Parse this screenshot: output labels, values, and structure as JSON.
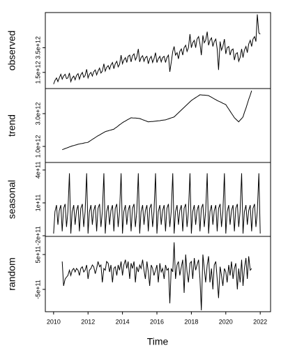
{
  "chart_data": {
    "type": "line",
    "xlabel": "Time",
    "color": "#000000",
    "xlim": [
      2009.52,
      2022.6
    ],
    "xticks": [
      2010,
      2012,
      2014,
      2016,
      2018,
      2020,
      2022
    ],
    "x": [
      2010,
      2010.08,
      2010.17,
      2010.25,
      2010.33,
      2010.42,
      2010.5,
      2010.58,
      2010.67,
      2010.75,
      2010.83,
      2010.92,
      2011,
      2011.08,
      2011.17,
      2011.25,
      2011.33,
      2011.42,
      2011.5,
      2011.58,
      2011.67,
      2011.75,
      2011.83,
      2011.92,
      2012,
      2012.08,
      2012.17,
      2012.25,
      2012.33,
      2012.42,
      2012.5,
      2012.58,
      2012.67,
      2012.75,
      2012.83,
      2012.92,
      2013,
      2013.08,
      2013.17,
      2013.25,
      2013.33,
      2013.42,
      2013.5,
      2013.58,
      2013.67,
      2013.75,
      2013.83,
      2013.92,
      2014,
      2014.08,
      2014.17,
      2014.25,
      2014.33,
      2014.42,
      2014.5,
      2014.58,
      2014.67,
      2014.75,
      2014.83,
      2014.92,
      2015,
      2015.08,
      2015.17,
      2015.25,
      2015.33,
      2015.42,
      2015.5,
      2015.58,
      2015.67,
      2015.75,
      2015.83,
      2015.92,
      2016,
      2016.08,
      2016.17,
      2016.25,
      2016.33,
      2016.42,
      2016.5,
      2016.58,
      2016.67,
      2016.75,
      2016.83,
      2016.92,
      2017,
      2017.08,
      2017.17,
      2017.25,
      2017.33,
      2017.42,
      2017.5,
      2017.58,
      2017.67,
      2017.75,
      2017.83,
      2017.92,
      2018,
      2018.08,
      2018.17,
      2018.25,
      2018.33,
      2018.42,
      2018.5,
      2018.58,
      2018.67,
      2018.75,
      2018.83,
      2018.92,
      2019,
      2019.08,
      2019.17,
      2019.25,
      2019.33,
      2019.42,
      2019.5,
      2019.58,
      2019.67,
      2019.75,
      2019.83,
      2019.92,
      2020,
      2020.08,
      2020.17,
      2020.25,
      2020.33,
      2020.42,
      2020.5,
      2020.58,
      2020.67,
      2020.75,
      2020.83,
      2020.92,
      2021,
      2021.08,
      2021.17,
      2021.25,
      2021.33,
      2021.42,
      2021.5,
      2021.58,
      2021.67,
      2021.75,
      2021.83,
      2021.92,
      2022
    ],
    "panels": [
      {
        "ylabel": "observed",
        "ylim": [
          190000000000.0,
          6350000000000.0
        ],
        "yticks": [
          {
            "value": 1500000000000.0,
            "label": "1.5e+12"
          },
          {
            "value": 3500000000000.0,
            "label": "3.5e+12"
          }
        ],
        "values": [
          550000000000.0,
          850000000000.0,
          1050000000000.0,
          750000000000.0,
          1050000000000.0,
          1350000000000.0,
          950000000000.0,
          1200000000000.0,
          1350000000000.0,
          1000000000000.0,
          1050000000000.0,
          1450000000000.0,
          750000000000.0,
          1050000000000.0,
          1200000000000.0,
          900000000000.0,
          1250000000000.0,
          1400000000000.0,
          950000000000.0,
          1300000000000.0,
          1500000000000.0,
          1100000000000.0,
          1250000000000.0,
          1750000000000.0,
          1050000000000.0,
          1350000000000.0,
          1500000000000.0,
          1200000000000.0,
          1550000000000.0,
          1700000000000.0,
          1300000000000.0,
          1600000000000.0,
          1850000000000.0,
          1450000000000.0,
          1600000000000.0,
          2200000000000.0,
          1600000000000.0,
          1900000000000.0,
          2050000000000.0,
          1750000000000.0,
          2100000000000.0,
          2300000000000.0,
          1800000000000.0,
          2200000000000.0,
          2400000000000.0,
          1950000000000.0,
          2150000000000.0,
          2900000000000.0,
          2200000000000.0,
          2500000000000.0,
          2700000000000.0,
          2300000000000.0,
          2800000000000.0,
          2900000000000.0,
          2350000000000.0,
          2850000000000.0,
          3000000000000.0,
          2500000000000.0,
          2750000000000.0,
          3400000000000.0,
          2350000000000.0,
          2700000000000.0,
          2850000000000.0,
          2400000000000.0,
          2700000000000.0,
          2800000000000.0,
          2200000000000.0,
          2600000000000.0,
          2800000000000.0,
          2300000000000.0,
          2600000000000.0,
          3100000000000.0,
          2300000000000.0,
          2600000000000.0,
          2800000000000.0,
          2350000000000.0,
          2700000000000.0,
          2800000000000.0,
          2300000000000.0,
          2700000000000.0,
          2900000000000.0,
          1550000000000.0,
          2300000000000.0,
          3200000000000.0,
          3600000000000.0,
          2900000000000.0,
          3100000000000.0,
          2600000000000.0,
          3200000000000.0,
          3400000000000.0,
          2900000000000.0,
          3500000000000.0,
          3700000000000.0,
          3200000000000.0,
          3500000000000.0,
          4600000000000.0,
          3500000000000.0,
          3900000000000.0,
          4100000000000.0,
          3500000000000.0,
          4200000000000.0,
          4400000000000.0,
          3800000000000.0,
          2900000000000.0,
          4500000000000.0,
          3900000000000.0,
          4100000000000.0,
          4800000000000.0,
          3700000000000.0,
          4100000000000.0,
          4300000000000.0,
          3600000000000.0,
          4000000000000.0,
          4200000000000.0,
          3400000000000.0,
          1700000000000.0,
          4000000000000.0,
          3300000000000.0,
          3600000000000.0,
          4200000000000.0,
          3000000000000.0,
          3500000000000.0,
          3600000000000.0,
          2900000000000.0,
          3300000000000.0,
          3400000000000.0,
          2500000000000.0,
          3000000000000.0,
          3100000000000.0,
          2400000000000.0,
          2700000000000.0,
          3400000000000.0,
          2700000000000.0,
          3300000000000.0,
          3600000000000.0,
          3100000000000.0,
          3800000000000.0,
          4100000000000.0,
          3600000000000.0,
          4200000000000.0,
          4400000000000.0,
          4000000000000.0,
          6200000000000.0,
          4700000000000.0,
          4600000000000.0
        ]
      },
      {
        "ylabel": "trend",
        "ylim": [
          20000000000.0,
          4530000000000.0
        ],
        "yticks": [
          {
            "value": 1000000000000.0,
            "label": "1.0e+12"
          },
          {
            "value": 3000000000000.0,
            "label": "3.0e+12"
          }
        ],
        "values": [
          null,
          null,
          null,
          null,
          null,
          null,
          800000000000.0,
          830000000000.0,
          870000000000.0,
          900000000000.0,
          930000000000.0,
          970000000000.0,
          1000000000000.0,
          1030000000000.0,
          1050000000000.0,
          1080000000000.0,
          1100000000000.0,
          1130000000000.0,
          1150000000000.0,
          1170000000000.0,
          1180000000000.0,
          1200000000000.0,
          1220000000000.0,
          1230000000000.0,
          1250000000000.0,
          1310000000000.0,
          1370000000000.0,
          1430000000000.0,
          1480000000000.0,
          1540000000000.0,
          1600000000000.0,
          1650000000000.0,
          1700000000000.0,
          1750000000000.0,
          1800000000000.0,
          1850000000000.0,
          1900000000000.0,
          1930000000000.0,
          1950000000000.0,
          1980000000000.0,
          2000000000000.0,
          2030000000000.0,
          2050000000000.0,
          2120000000000.0,
          2180000000000.0,
          2250000000000.0,
          2320000000000.0,
          2380000000000.0,
          2450000000000.0,
          2500000000000.0,
          2550000000000.0,
          2600000000000.0,
          2650000000000.0,
          2700000000000.0,
          2750000000000.0,
          2740000000000.0,
          2730000000000.0,
          2730000000000.0,
          2720000000000.0,
          2710000000000.0,
          2700000000000.0,
          2670000000000.0,
          2630000000000.0,
          2600000000000.0,
          2570000000000.0,
          2530000000000.0,
          2500000000000.0,
          2510000000000.0,
          2520000000000.0,
          2520000000000.0,
          2530000000000.0,
          2540000000000.0,
          2550000000000.0,
          2560000000000.0,
          2570000000000.0,
          2590000000000.0,
          2600000000000.0,
          2610000000000.0,
          2620000000000.0,
          2650000000000.0,
          2680000000000.0,
          2710000000000.0,
          2740000000000.0,
          2770000000000.0,
          2800000000000.0,
          2880000000000.0,
          2970000000000.0,
          3050000000000.0,
          3130000000000.0,
          3220000000000.0,
          3300000000000.0,
          3380000000000.0,
          3470000000000.0,
          3550000000000.0,
          3630000000000.0,
          3720000000000.0,
          3800000000000.0,
          3860000000000.0,
          3920000000000.0,
          3980000000000.0,
          4030000000000.0,
          4090000000000.0,
          4150000000000.0,
          4140000000000.0,
          4130000000000.0,
          4130000000000.0,
          4120000000000.0,
          4110000000000.0,
          4100000000000.0,
          4050000000000.0,
          4000000000000.0,
          3950000000000.0,
          3900000000000.0,
          3850000000000.0,
          3800000000000.0,
          3760000000000.0,
          3720000000000.0,
          3680000000000.0,
          3630000000000.0,
          3590000000000.0,
          3550000000000.0,
          3420000000000.0,
          3280000000000.0,
          3150000000000.0,
          3020000000000.0,
          2880000000000.0,
          2750000000000.0,
          2670000000000.0,
          2580000000000.0,
          2500000000000.0,
          2600000000000.0,
          2700000000000.0,
          2800000000000.0,
          3070000000000.0,
          3330000000000.0,
          3600000000000.0,
          3870000000000.0,
          4130000000000.0,
          4400000000000.0,
          null,
          null,
          null,
          null,
          null,
          null
        ]
      },
      {
        "ylabel": "seasonal",
        "ylim": [
          -206000000000.0,
          469000000000.0
        ],
        "yticks": [
          {
            "value": -200000000000.0,
            "label": "-2e+11"
          },
          {
            "value": 100000000000.0,
            "label": "1e+11"
          },
          {
            "value": 400000000000.0,
            "label": "4e+11"
          }
        ],
        "values": [
          -180000000000.0,
          20000000000.0,
          80000000000.0,
          -100000000000.0,
          30000000000.0,
          80000000000.0,
          -160000000000.0,
          50000000000.0,
          90000000000.0,
          -120000000000.0,
          20000000000.0,
          370000000000.0,
          -180000000000.0,
          20000000000.0,
          80000000000.0,
          -100000000000.0,
          30000000000.0,
          80000000000.0,
          -160000000000.0,
          50000000000.0,
          90000000000.0,
          -120000000000.0,
          20000000000.0,
          370000000000.0,
          -180000000000.0,
          20000000000.0,
          80000000000.0,
          -100000000000.0,
          30000000000.0,
          80000000000.0,
          -160000000000.0,
          50000000000.0,
          90000000000.0,
          -120000000000.0,
          20000000000.0,
          370000000000.0,
          -180000000000.0,
          20000000000.0,
          80000000000.0,
          -100000000000.0,
          30000000000.0,
          80000000000.0,
          -160000000000.0,
          50000000000.0,
          90000000000.0,
          -120000000000.0,
          20000000000.0,
          370000000000.0,
          -180000000000.0,
          20000000000.0,
          80000000000.0,
          -100000000000.0,
          30000000000.0,
          80000000000.0,
          -160000000000.0,
          50000000000.0,
          90000000000.0,
          -120000000000.0,
          20000000000.0,
          370000000000.0,
          -180000000000.0,
          20000000000.0,
          80000000000.0,
          -100000000000.0,
          30000000000.0,
          80000000000.0,
          -160000000000.0,
          50000000000.0,
          90000000000.0,
          -120000000000.0,
          20000000000.0,
          370000000000.0,
          -180000000000.0,
          20000000000.0,
          80000000000.0,
          -100000000000.0,
          30000000000.0,
          80000000000.0,
          -160000000000.0,
          50000000000.0,
          90000000000.0,
          -120000000000.0,
          20000000000.0,
          370000000000.0,
          -180000000000.0,
          20000000000.0,
          80000000000.0,
          -100000000000.0,
          30000000000.0,
          80000000000.0,
          -160000000000.0,
          50000000000.0,
          90000000000.0,
          -120000000000.0,
          20000000000.0,
          370000000000.0,
          -180000000000.0,
          20000000000.0,
          80000000000.0,
          -100000000000.0,
          30000000000.0,
          80000000000.0,
          -160000000000.0,
          50000000000.0,
          90000000000.0,
          -120000000000.0,
          20000000000.0,
          370000000000.0,
          -180000000000.0,
          20000000000.0,
          80000000000.0,
          -100000000000.0,
          30000000000.0,
          80000000000.0,
          -160000000000.0,
          50000000000.0,
          90000000000.0,
          -120000000000.0,
          20000000000.0,
          370000000000.0,
          -180000000000.0,
          20000000000.0,
          80000000000.0,
          -100000000000.0,
          30000000000.0,
          80000000000.0,
          -160000000000.0,
          50000000000.0,
          90000000000.0,
          -120000000000.0,
          20000000000.0,
          370000000000.0,
          -180000000000.0,
          20000000000.0,
          80000000000.0,
          -100000000000.0,
          30000000000.0,
          80000000000.0,
          -160000000000.0,
          50000000000.0,
          90000000000.0,
          -120000000000.0,
          20000000000.0,
          370000000000.0,
          -180000000000.0
        ]
      },
      {
        "ylabel": "random",
        "ylim": [
          -1140000000000.0,
          1020000000000.0
        ],
        "yticks": [
          {
            "value": -500000000000.0,
            "label": "-5e+11"
          },
          {
            "value": 500000000000.0,
            "label": "5e+11"
          }
        ],
        "values": [
          null,
          null,
          null,
          null,
          null,
          null,
          300000000000.0,
          -400000000000.0,
          -200000000000.0,
          -150000000000.0,
          -100000000000.0,
          50000000000.0,
          -100000000000.0,
          50000000000.0,
          100000000000.0,
          0,
          100000000000.0,
          50000000000.0,
          -100000000000.0,
          100000000000.0,
          150000000000.0,
          0,
          50000000000.0,
          200000000000.0,
          -200000000000.0,
          50000000000.0,
          100000000000.0,
          200000000000.0,
          150000000000.0,
          -50000000000.0,
          100000000000.0,
          300000000000.0,
          150000000000.0,
          200000000000.0,
          -300000000000.0,
          100000000000.0,
          50000000000.0,
          300000000000.0,
          250000000000.0,
          0,
          200000000000.0,
          -300000000000.0,
          100000000000.0,
          150000000000.0,
          -100000000000.0,
          200000000000.0,
          50000000000.0,
          300000000000.0,
          -100000000000.0,
          200000000000.0,
          350000000000.0,
          100000000000.0,
          300000000000.0,
          -200000000000.0,
          250000000000.0,
          100000000000.0,
          300000000000.0,
          -300000000000.0,
          150000000000.0,
          0,
          200000000000.0,
          100000000000.0,
          350000000000.0,
          50000000000.0,
          -200000000000.0,
          300000000000.0,
          0,
          -400000000000.0,
          200000000000.0,
          100000000000.0,
          -100000000000.0,
          50000000000.0,
          200000000000.0,
          -300000000000.0,
          250000000000.0,
          0,
          100000000000.0,
          -200000000000.0,
          200000000000.0,
          50000000000.0,
          100000000000.0,
          -900000000000.0,
          100000000000.0,
          0,
          850000000000.0,
          -200000000000.0,
          200000000000.0,
          300000000000.0,
          -100000000000.0,
          150000000000.0,
          350000000000.0,
          -600000000000.0,
          500000000000.0,
          0,
          -300000000000.0,
          250000000000.0,
          300000000000.0,
          -200000000000.0,
          400000000000.0,
          50000000000.0,
          200000000000.0,
          350000000000.0,
          -200000000000.0,
          -1100000000000.0,
          500000000000.0,
          100000000000.0,
          -300000000000.0,
          200000000000.0,
          450000000000.0,
          -300000000000.0,
          100000000000.0,
          -500000000000.0,
          200000000000.0,
          300000000000.0,
          -200000000000.0,
          -750000000000.0,
          150000000000.0,
          -100000000000.0,
          -400000000000.0,
          100000000000.0,
          0,
          -300000000000.0,
          200000000000.0,
          -100000000000.0,
          300000000000.0,
          -200000000000.0,
          100000000000.0,
          250000000000.0,
          -500000000000.0,
          100000000000.0,
          -300000000000.0,
          350000000000.0,
          -400000000000.0,
          100000000000.0,
          400000000000.0,
          -200000000000.0,
          450000000000.0,
          50000000000.0,
          100000000000.0,
          null,
          null,
          null,
          null,
          null,
          null
        ]
      }
    ]
  }
}
